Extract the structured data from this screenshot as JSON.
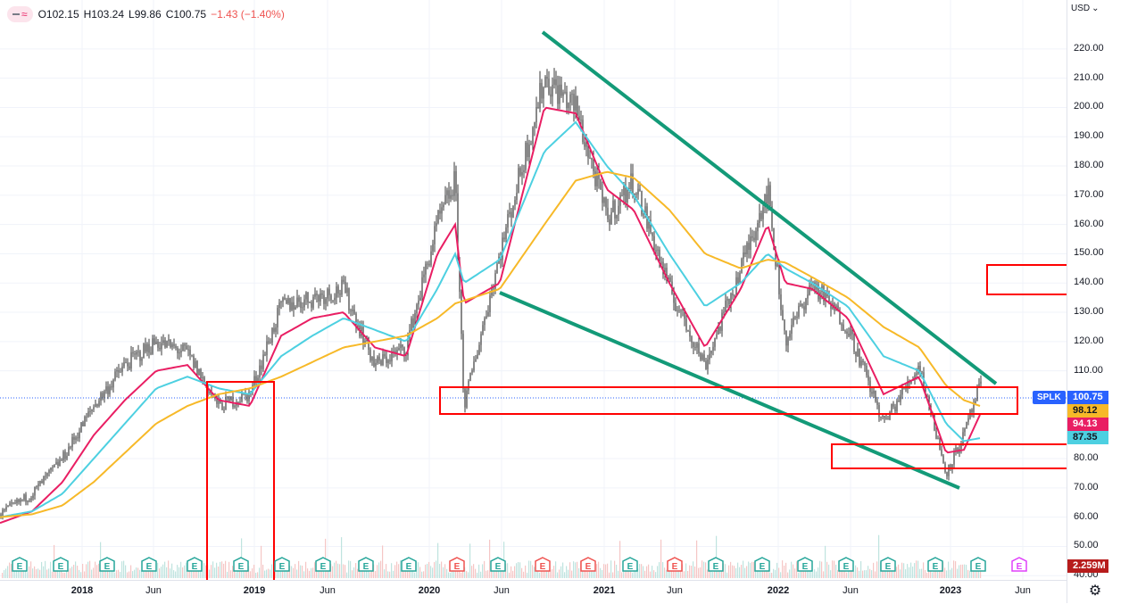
{
  "legend": {
    "open": "O102.15",
    "high": "H103.24",
    "low": "L99.86",
    "close": "C100.75",
    "change": "−1.43 (−1.40%)"
  },
  "price_axis": {
    "currency": "USD",
    "ticks": [
      "220.00",
      "210.00",
      "200.00",
      "190.00",
      "180.00",
      "170.00",
      "160.00",
      "150.00",
      "140.00",
      "130.00",
      "120.00",
      "110.00",
      "80.00",
      "70.00",
      "60.00",
      "50.00",
      "40.00"
    ]
  },
  "time_axis": {
    "labels": [
      {
        "text": "2018",
        "bold": true
      },
      {
        "text": "Jun",
        "bold": false
      },
      {
        "text": "2019",
        "bold": true
      },
      {
        "text": "Jun",
        "bold": false
      },
      {
        "text": "2020",
        "bold": true
      },
      {
        "text": "Jun",
        "bold": false
      },
      {
        "text": "2021",
        "bold": true
      },
      {
        "text": "Jun",
        "bold": false
      },
      {
        "text": "2022",
        "bold": true
      },
      {
        "text": "Jun",
        "bold": false
      },
      {
        "text": "2023",
        "bold": true
      },
      {
        "text": "Jun",
        "bold": false
      }
    ]
  },
  "tags": {
    "symbol": "SPLK",
    "price": "100.75",
    "ma_orange": "98.12",
    "ma_pink": "94.13",
    "ma_cyan": "87.35",
    "volume": "2.259M"
  },
  "colors": {
    "up": "#26a69a",
    "down": "#ef5350",
    "candle": "#3a3a3a",
    "ma_orange": "#f7b928",
    "ma_pink": "#e91e63",
    "ma_cyan": "#4dd0e1",
    "trendline": "#139a78",
    "box": "#ff0000",
    "price_tag": "#2962ff"
  },
  "earnings_markers": [
    {
      "label": "E",
      "kind": "up"
    },
    {
      "label": "E",
      "kind": "up"
    },
    {
      "label": "E",
      "kind": "up"
    },
    {
      "label": "E",
      "kind": "up"
    },
    {
      "label": "E",
      "kind": "up"
    },
    {
      "label": "E",
      "kind": "up"
    },
    {
      "label": "E",
      "kind": "up"
    },
    {
      "label": "E",
      "kind": "up"
    },
    {
      "label": "E",
      "kind": "up"
    },
    {
      "label": "E",
      "kind": "up"
    },
    {
      "label": "E",
      "kind": "down"
    },
    {
      "label": "E",
      "kind": "up"
    },
    {
      "label": "E",
      "kind": "down"
    },
    {
      "label": "E",
      "kind": "down"
    },
    {
      "label": "E",
      "kind": "up"
    },
    {
      "label": "E",
      "kind": "down"
    },
    {
      "label": "E",
      "kind": "up"
    },
    {
      "label": "E",
      "kind": "up"
    },
    {
      "label": "E",
      "kind": "up"
    },
    {
      "label": "E",
      "kind": "up"
    },
    {
      "label": "E",
      "kind": "up"
    },
    {
      "label": "E",
      "kind": "up"
    },
    {
      "label": "E",
      "kind": "up"
    },
    {
      "label": "E",
      "kind": "future"
    }
  ],
  "chart_data": {
    "type": "line",
    "title": "",
    "xlabel": "",
    "ylabel": "",
    "ylim": [
      40,
      227
    ],
    "x": [
      "2017-10",
      "2017-12",
      "2018-02",
      "2018-04",
      "2018-06",
      "2018-08",
      "2018-10",
      "2018-12",
      "2019-02",
      "2019-04",
      "2019-06",
      "2019-08",
      "2019-10",
      "2019-12",
      "2020-02",
      "2020-03",
      "2020-04",
      "2020-06",
      "2020-08",
      "2020-10",
      "2020-12",
      "2021-02",
      "2021-04",
      "2021-06",
      "2021-08",
      "2021-10",
      "2021-12",
      "2022-02",
      "2022-04",
      "2022-06",
      "2022-08",
      "2022-10",
      "2022-12",
      "2023-02"
    ],
    "series": [
      {
        "values": [
          61,
          68,
          80,
          98,
          112,
          120,
          116,
          98,
          102,
          132,
          135,
          138,
          112,
          118,
          160,
          175,
          98,
          150,
          210,
          200,
          162,
          175,
          138,
          112,
          145,
          172,
          120,
          140,
          125,
          92,
          112,
          75,
          88,
          105
        ]
      },
      {
        "values": [
          58,
          62,
          72,
          88,
          100,
          110,
          112,
          100,
          98,
          122,
          128,
          130,
          118,
          115,
          150,
          160,
          133,
          140,
          200,
          198,
          172,
          165,
          140,
          118,
          138,
          160,
          140,
          138,
          128,
          102,
          108,
          82,
          83,
          95
        ]
      },
      {
        "values": [
          60,
          62,
          68,
          80,
          92,
          104,
          108,
          104,
          102,
          115,
          122,
          128,
          124,
          120,
          138,
          150,
          140,
          148,
          185,
          195,
          180,
          170,
          150,
          132,
          140,
          150,
          145,
          140,
          132,
          115,
          110,
          92,
          86,
          87
        ]
      },
      {
        "values": [
          60,
          61,
          64,
          72,
          82,
          92,
          98,
          102,
          104,
          108,
          113,
          118,
          120,
          122,
          128,
          133,
          134,
          138,
          160,
          175,
          178,
          176,
          165,
          150,
          145,
          148,
          147,
          142,
          135,
          125,
          118,
          105,
          100,
          98
        ]
      }
    ],
    "volume": {
      "last": "2.259M"
    }
  }
}
